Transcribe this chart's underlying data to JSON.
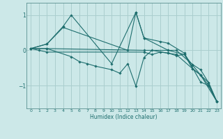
{
  "xlabel": "Humidex (Indice chaleur)",
  "background_color": "#cce8e8",
  "grid_color": "#aacece",
  "line_color": "#1e6e6e",
  "marker_color": "#1e6e6e",
  "xlim": [
    -0.5,
    23.5
  ],
  "ylim": [
    -1.65,
    1.35
  ],
  "yticks": [
    -1,
    0,
    1
  ],
  "xticks": [
    0,
    1,
    2,
    3,
    4,
    5,
    6,
    7,
    8,
    9,
    10,
    11,
    12,
    13,
    14,
    15,
    16,
    17,
    18,
    19,
    20,
    21,
    22,
    23
  ],
  "series": [
    {
      "x": [
        0,
        2,
        4,
        5,
        10,
        13,
        14,
        16,
        17,
        19,
        21,
        22,
        23
      ],
      "y": [
        0.05,
        0.18,
        0.68,
        1.0,
        -0.38,
        1.08,
        0.35,
        0.25,
        0.2,
        -0.08,
        -0.9,
        -1.0,
        -1.45
      ]
    },
    {
      "x": [
        0,
        2,
        5,
        6,
        7,
        8,
        10,
        11,
        12,
        13,
        14,
        15,
        17,
        18,
        20,
        21,
        22,
        23
      ],
      "y": [
        0.05,
        0.05,
        -0.18,
        -0.32,
        -0.38,
        -0.45,
        -0.55,
        -0.65,
        -0.38,
        -1.02,
        -0.2,
        0.0,
        -0.08,
        -0.12,
        -0.52,
        -0.7,
        -1.0,
        -1.45
      ]
    },
    {
      "x": [
        0,
        2,
        4,
        12,
        13,
        14,
        17,
        18,
        20,
        21,
        22,
        23
      ],
      "y": [
        0.05,
        0.18,
        0.65,
        0.0,
        1.08,
        0.35,
        0.0,
        0.0,
        -0.4,
        -0.55,
        -0.92,
        -1.45
      ]
    },
    {
      "x": [
        0,
        1,
        2,
        14,
        15,
        16,
        17,
        18,
        19,
        20,
        21,
        22,
        23
      ],
      "y": [
        0.05,
        0.0,
        -0.05,
        -0.05,
        -0.12,
        -0.05,
        -0.08,
        -0.15,
        -0.12,
        -0.52,
        -0.7,
        -0.92,
        -1.45
      ]
    },
    {
      "x": [
        0,
        2,
        14,
        17,
        19,
        20,
        21,
        23
      ],
      "y": [
        0.05,
        0.05,
        0.0,
        0.0,
        -0.12,
        -0.42,
        -0.7,
        -1.45
      ]
    }
  ]
}
